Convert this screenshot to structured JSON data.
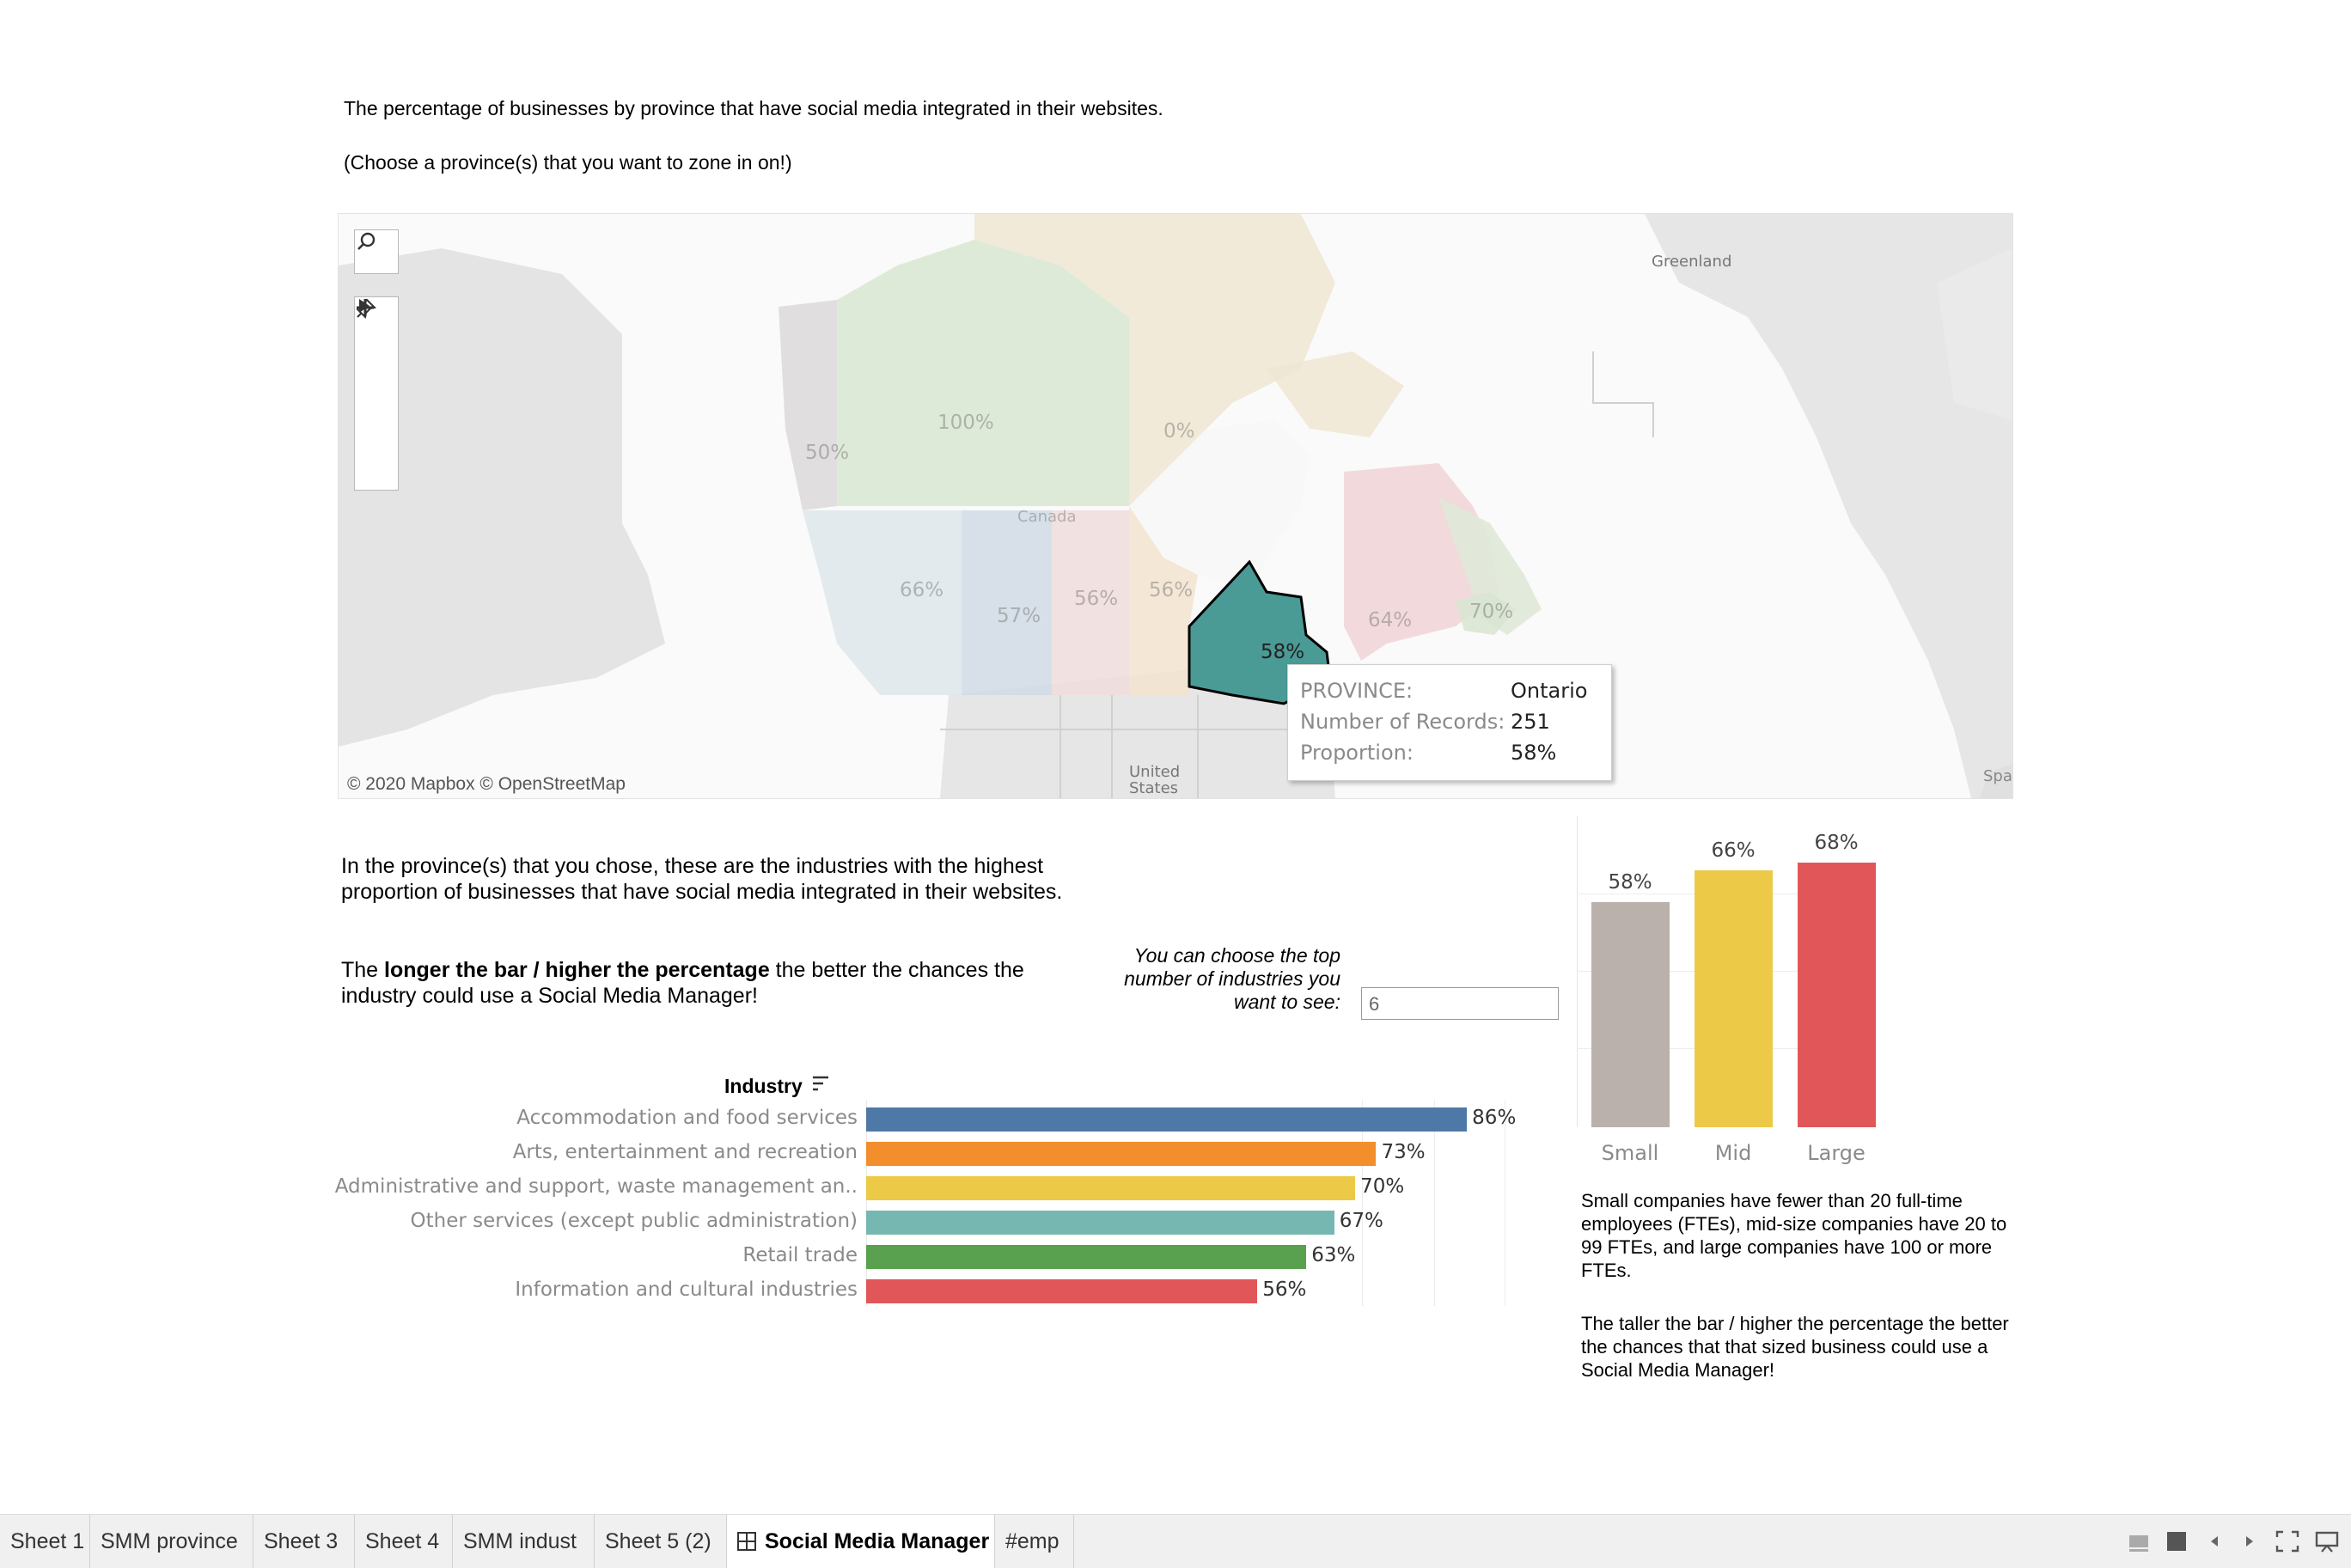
{
  "intro": {
    "line1": "The percentage of businesses by province that have social media integrated in their websites.",
    "line2": "(Choose a province(s) that you want to zone in on!)"
  },
  "map": {
    "labels": {
      "greenland": "Greenland",
      "canada": "Canada",
      "united_states": "United States",
      "spain": "Spa",
      "yukon": "50%",
      "nwt": "100%",
      "nunavut": "0%",
      "bc": "66%",
      "alberta": "57%",
      "saskatchewan": "56%",
      "manitoba": "56%",
      "ontario": "58%",
      "quebec": "64%",
      "atlantic": "70%"
    },
    "credit": "© 2020 Mapbox © OpenStreetMap",
    "tooltip": {
      "k1": "PROVINCE:",
      "v1": "Ontario",
      "k2": "Number of Records:",
      "v2": "251",
      "k3": "Proportion:",
      "v3": "58%"
    },
    "controls": [
      "search-icon",
      "zoom-in-icon",
      "zoom-out-icon",
      "pin-icon",
      "play-icon"
    ]
  },
  "industry_text": {
    "p1": "In the province(s) that you chose, these are the industries with the highest proportion of businesses that have social media integrated in their websites.",
    "p2_pre": "The ",
    "p2_bold": "longer the bar / higher the percentage",
    "p2_post": " the better the chances the industry could use a Social Media Manager!",
    "choose_note": "You can choose the top number of industries you want to see:",
    "top_n_value": "6",
    "header": "Industry"
  },
  "chart_data": [
    {
      "type": "bar",
      "orientation": "horizontal",
      "title": "",
      "categories": [
        "Accommodation and food services",
        "Arts, entertainment and recreation",
        "Administrative and support, waste management an..",
        "Other services (except public administration)",
        "Retail trade",
        "Information and cultural industries"
      ],
      "values": [
        86,
        73,
        70,
        67,
        63,
        56
      ],
      "value_labels": [
        "86%",
        "73%",
        "70%",
        "67%",
        "63%",
        "56%"
      ],
      "colors": [
        "#4e79a7",
        "#f28e2b",
        "#edc948",
        "#76b7b2",
        "#59a14f",
        "#e15759"
      ],
      "xlim": [
        0,
        100
      ],
      "grid": true
    },
    {
      "type": "bar",
      "orientation": "vertical",
      "title": "",
      "categories": [
        "Small",
        "Mid",
        "Large"
      ],
      "values": [
        58,
        66,
        68
      ],
      "value_labels": [
        "58%",
        "66%",
        "68%"
      ],
      "colors": [
        "#bab0ac",
        "#edc948",
        "#e15759"
      ],
      "ylim": [
        0,
        80
      ],
      "grid": true
    }
  ],
  "size_text": {
    "p1": "Small companies have fewer than 20 full-time employees (FTEs),  mid-size companies have 20 to 99 FTEs, and large companies have 100 or more FTEs.",
    "p2": "The taller the bar / higher the percentage the better the chances that that sized business could use a Social Media Manager!"
  },
  "tabs": [
    {
      "label": "Sheet 1"
    },
    {
      "label": "SMM province"
    },
    {
      "label": "Sheet 3"
    },
    {
      "label": "Sheet 4"
    },
    {
      "label": "SMM indust"
    },
    {
      "label": "Sheet 5 (2)"
    },
    {
      "label": "Social Media Manager",
      "active": true
    },
    {
      "label": "#emp"
    }
  ]
}
